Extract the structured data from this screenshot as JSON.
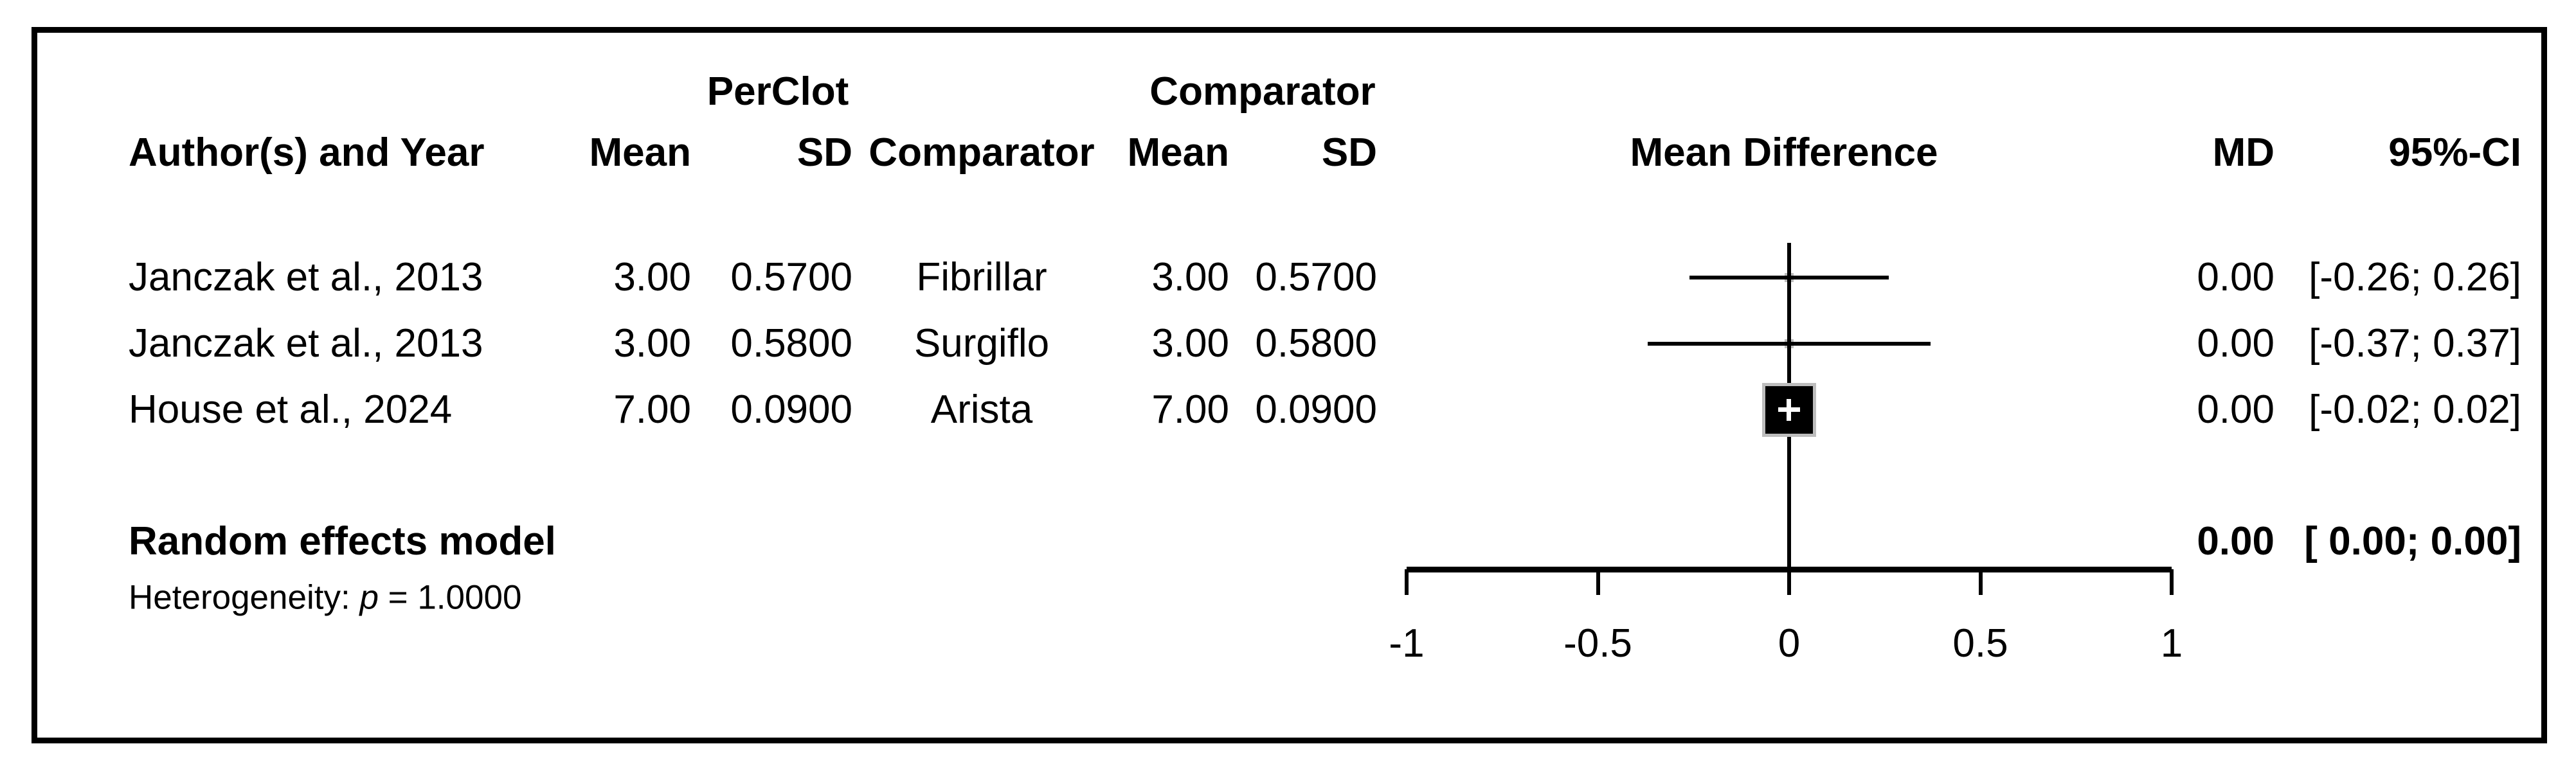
{
  "header": {
    "group1": {
      "perclot": "PerClot",
      "comparator": "Comparator"
    },
    "cols": {
      "author": "Author(s) and Year",
      "mean1": "Mean",
      "sd1": "SD",
      "comparator": "Comparator",
      "mean2": "Mean",
      "sd2": "SD",
      "mean_difference": "Mean Difference",
      "md": "MD",
      "ci": "95%-CI"
    }
  },
  "rows": [
    {
      "author": "Janczak et al., 2013",
      "mean1": "3.00",
      "sd1": "0.5700",
      "comparator": "Fibrillar",
      "mean2": "3.00",
      "sd2": "0.5700",
      "md": "0.00",
      "ci": "[-0.26; 0.26]"
    },
    {
      "author": "Janczak et al., 2013",
      "mean1": "3.00",
      "sd1": "0.5800",
      "comparator": "Surgiflo",
      "mean2": "3.00",
      "sd2": "0.5800",
      "md": "0.00",
      "ci": "[-0.37; 0.37]"
    },
    {
      "author": "House et al., 2024",
      "mean1": "7.00",
      "sd1": "0.0900",
      "comparator": "Arista",
      "mean2": "7.00",
      "sd2": "0.0900",
      "md": "0.00",
      "ci": "[-0.02; 0.02]"
    }
  ],
  "summary": {
    "label": "Random effects model",
    "md": "0.00",
    "ci": "[ 0.00; 0.00]"
  },
  "heterogeneity": {
    "prefix": "Heterogeneity: ",
    "p_label": "p",
    "value_text": " = 1.0000"
  },
  "colors": {
    "text": "#000000",
    "marker_fill": "#000000",
    "marker_edge": "#bdbdbd",
    "plus": "#ffffff",
    "background": "#ffffff"
  },
  "chart_data": {
    "type": "forest",
    "title": "",
    "xlabel": "Mean Difference",
    "xlim": [
      -1,
      1
    ],
    "tick_labels": [
      "-1",
      "-0.5",
      "0",
      "0.5",
      "1"
    ],
    "reference_line": 0,
    "legend_position": "none",
    "grid": false,
    "studies": [
      {
        "author": "Janczak et al., 2013",
        "comparator": "Fibrillar",
        "perclot_mean": 3.0,
        "perclot_sd": 0.57,
        "comparator_mean": 3.0,
        "comparator_sd": 0.57,
        "md": 0.0,
        "ci_lower": -0.26,
        "ci_upper": 0.26,
        "weight_marker": "small"
      },
      {
        "author": "Janczak et al., 2013",
        "comparator": "Surgiflo",
        "perclot_mean": 3.0,
        "perclot_sd": 0.58,
        "comparator_mean": 3.0,
        "comparator_sd": 0.58,
        "md": 0.0,
        "ci_lower": -0.37,
        "ci_upper": 0.37,
        "weight_marker": "small"
      },
      {
        "author": "House et al., 2024",
        "comparator": "Arista",
        "perclot_mean": 7.0,
        "perclot_sd": 0.09,
        "comparator_mean": 7.0,
        "comparator_sd": 0.09,
        "md": 0.0,
        "ci_lower": -0.02,
        "ci_upper": 0.02,
        "weight_marker": "large"
      }
    ],
    "summary": {
      "label": "Random effects model",
      "md": 0.0,
      "ci_lower": 0.0,
      "ci_upper": 0.0
    },
    "heterogeneity_p": 1.0
  }
}
